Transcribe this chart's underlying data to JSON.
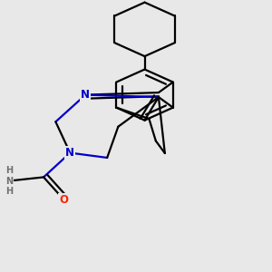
{
  "bg": "#e8e8e8",
  "bc": "#000000",
  "nc": "#0000cc",
  "oc": "#ff2200",
  "gc": "#707070",
  "lw": 1.6,
  "figsize": [
    3.0,
    3.0
  ],
  "dpi": 100,
  "xlim": [
    -2.8,
    2.8
  ],
  "ylim": [
    -3.2,
    4.0
  ]
}
